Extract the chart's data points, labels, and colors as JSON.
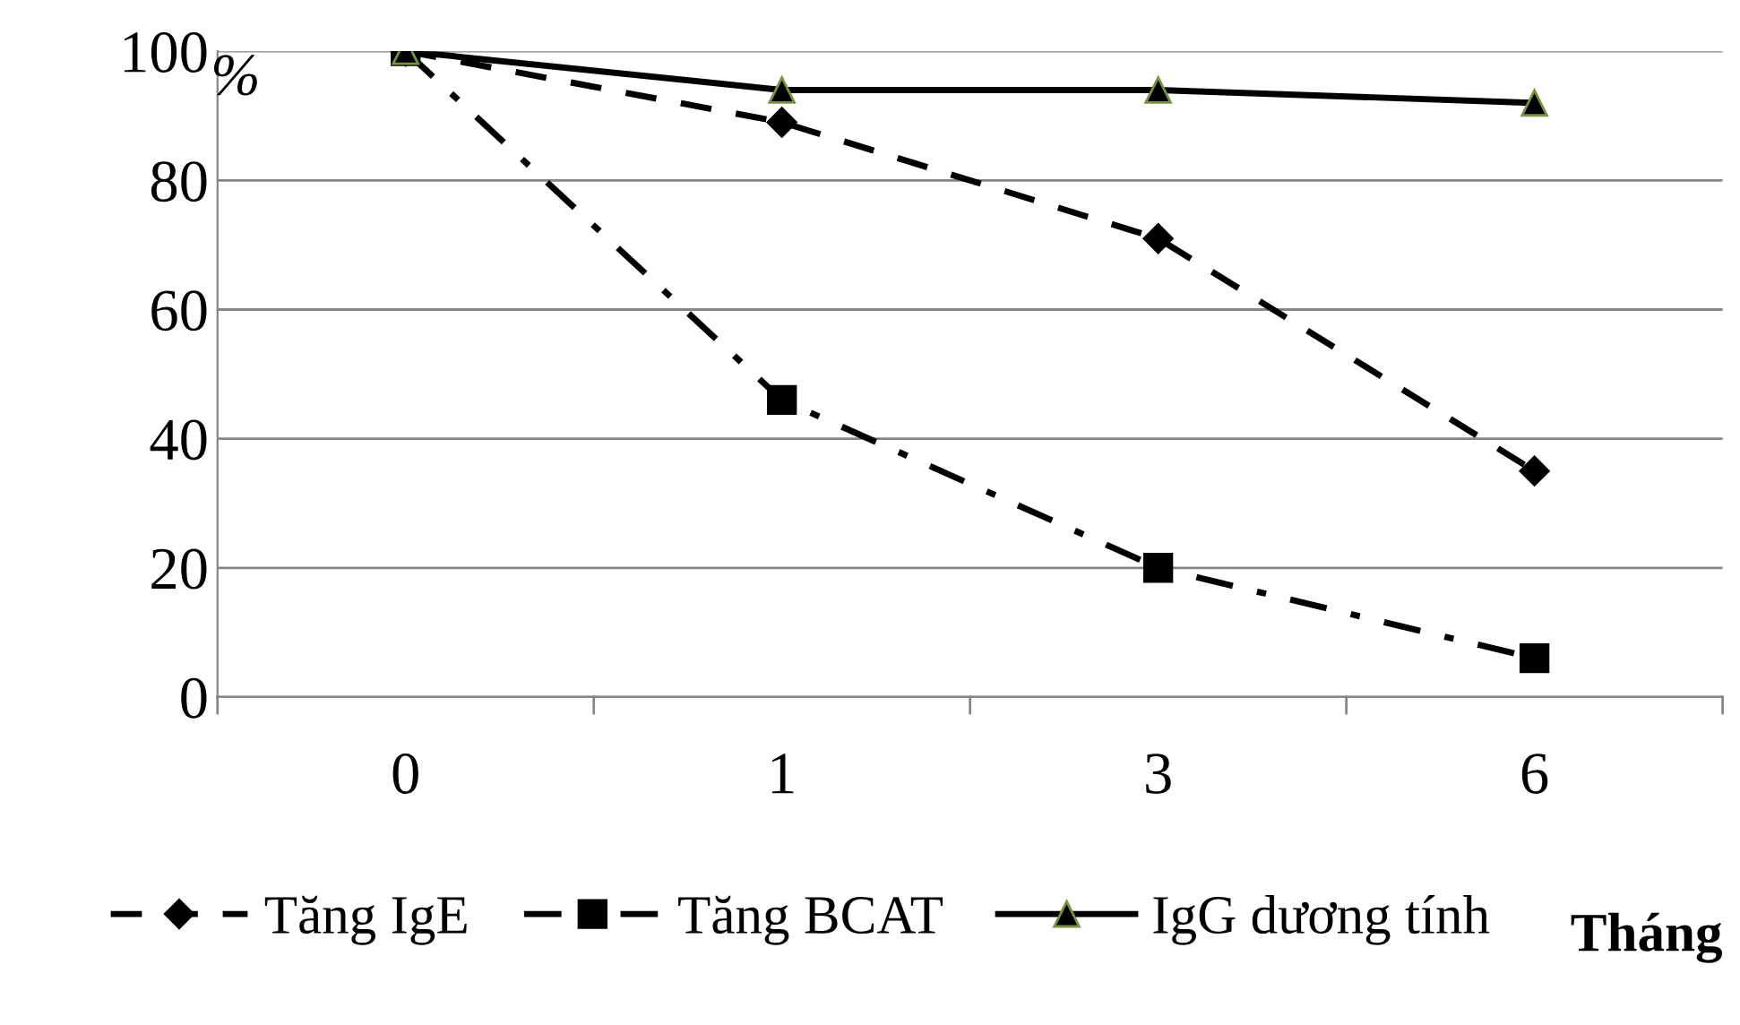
{
  "chart_data": {
    "type": "line",
    "xlabel": "Tháng",
    "ylabel": "%",
    "categories": [
      "0",
      "1",
      "3",
      "6"
    ],
    "ylim": [
      0,
      100
    ],
    "yticks": [
      0,
      20,
      40,
      60,
      80,
      100
    ],
    "grid": "y",
    "legend": "bottom",
    "series": [
      {
        "name": "Tăng IgE",
        "color": "#000000",
        "values": [
          100,
          89,
          71,
          35
        ],
        "marker": "diamond",
        "line_style": "dashed"
      },
      {
        "name": "Tăng BCAT",
        "color": "#000000",
        "values": [
          100,
          46,
          20,
          6
        ],
        "marker": "square",
        "line_style": "dashdot"
      },
      {
        "name": "IgG dương tính",
        "color": "#000000",
        "values": [
          100,
          94,
          94,
          92
        ],
        "marker": "triangle",
        "line_style": "solid"
      }
    ]
  }
}
